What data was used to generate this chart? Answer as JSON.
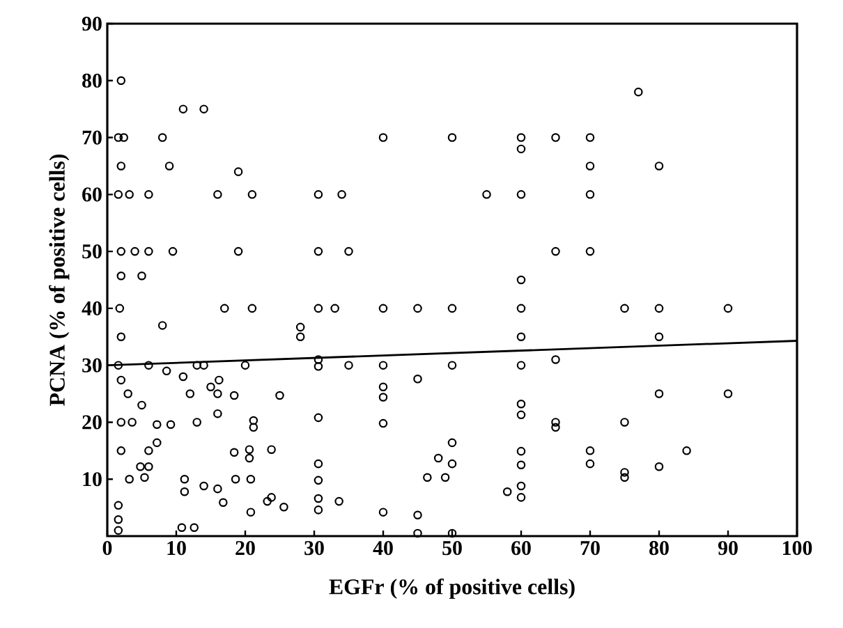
{
  "chart_data": {
    "type": "scatter",
    "xlabel": "EGFr (% of positive cells)",
    "ylabel": "PCNA (% of positive cells)",
    "xlim": [
      0,
      100
    ],
    "ylim": [
      0,
      90
    ],
    "xticks": [
      0,
      10,
      20,
      30,
      40,
      50,
      60,
      70,
      80,
      90,
      100
    ],
    "yticks": [
      10,
      20,
      30,
      40,
      50,
      60,
      70,
      80,
      90
    ],
    "grid": false,
    "series": [
      {
        "marker": "circle",
        "color": "#000000",
        "x": [
          40,
          50,
          60,
          60,
          65,
          34,
          55,
          60,
          35,
          65,
          60,
          33,
          40,
          45,
          50,
          60,
          60,
          35,
          40,
          40,
          40,
          40,
          45,
          50,
          50,
          48,
          50,
          46.4,
          49,
          45,
          45,
          50,
          40,
          33.6,
          60,
          65,
          60,
          60,
          65,
          65,
          60,
          60,
          58,
          60,
          60,
          77,
          70,
          70,
          80,
          70,
          70,
          75,
          80,
          90,
          80,
          80,
          90,
          75,
          70,
          70,
          75,
          75,
          80,
          84,
          2,
          11,
          14,
          1.6,
          2.4,
          8,
          2,
          9,
          19,
          1.6,
          3.2,
          6,
          16,
          21,
          30.6,
          2,
          4,
          6,
          9.5,
          19,
          30.6,
          2,
          5,
          1.8,
          17,
          21,
          30.6,
          8,
          28,
          28,
          2,
          1.6,
          6,
          8.6,
          11,
          13,
          14,
          20,
          30.6,
          30.6,
          2,
          3,
          5,
          12,
          15,
          16.2,
          16,
          18.4,
          25,
          16,
          2,
          3.6,
          7.2,
          9.2,
          13,
          21.2,
          21.2,
          30.6,
          2,
          6,
          7.2,
          18.4,
          20.6,
          20.6,
          23.8,
          4.8,
          6,
          5.4,
          3.2,
          11.2,
          11.2,
          18.6,
          20.8,
          30.6,
          30.6,
          14,
          16,
          16.8,
          20.8,
          23.2,
          23.8,
          25.6,
          30.6,
          30.6,
          1.6,
          1.6,
          1.6,
          10.8,
          12.6
        ],
        "values": [
          70,
          70,
          70,
          68,
          70,
          60,
          60,
          60,
          50,
          50,
          45,
          40,
          40,
          40,
          40,
          40,
          35,
          30,
          30,
          26.2,
          24.4,
          19.8,
          27.6,
          30,
          16.4,
          13.7,
          12.7,
          10.3,
          10.3,
          3.7,
          0.5,
          0.5,
          4.2,
          6.1,
          30,
          31,
          23.2,
          21.3,
          20,
          19.1,
          14.9,
          12.5,
          7.8,
          8.8,
          6.8,
          78,
          70,
          65,
          65,
          60,
          50,
          40,
          40,
          40,
          35,
          25,
          25,
          20,
          15,
          12.7,
          11.2,
          10.3,
          12.2,
          15,
          80,
          75,
          75,
          70,
          70,
          70,
          65,
          65,
          64,
          60,
          60,
          60,
          60,
          60,
          60,
          50,
          50,
          50,
          50,
          50,
          50,
          45.7,
          45.7,
          40,
          40,
          40,
          40,
          37,
          36.7,
          35,
          35,
          30,
          30,
          29,
          28,
          30,
          30,
          30,
          31,
          29.8,
          27.4,
          25,
          23,
          25,
          26.2,
          27.4,
          25,
          24.7,
          24.7,
          21.5,
          20,
          20,
          19.6,
          19.6,
          20,
          20.3,
          19.1,
          20.8,
          15,
          15,
          16.4,
          14.7,
          15.2,
          13.7,
          15.2,
          12.2,
          12.2,
          10.3,
          10,
          10,
          7.8,
          10,
          10,
          12.7,
          9.8,
          8.8,
          8.3,
          5.9,
          4.2,
          6.1,
          6.8,
          5.1,
          6.6,
          4.6,
          5.4,
          2.9,
          1,
          1.5,
          1.5
        ]
      },
      {
        "type": "line",
        "marker": "none",
        "color": "#000000",
        "x": [
          0,
          100
        ],
        "values": [
          30,
          34.3
        ]
      }
    ]
  }
}
